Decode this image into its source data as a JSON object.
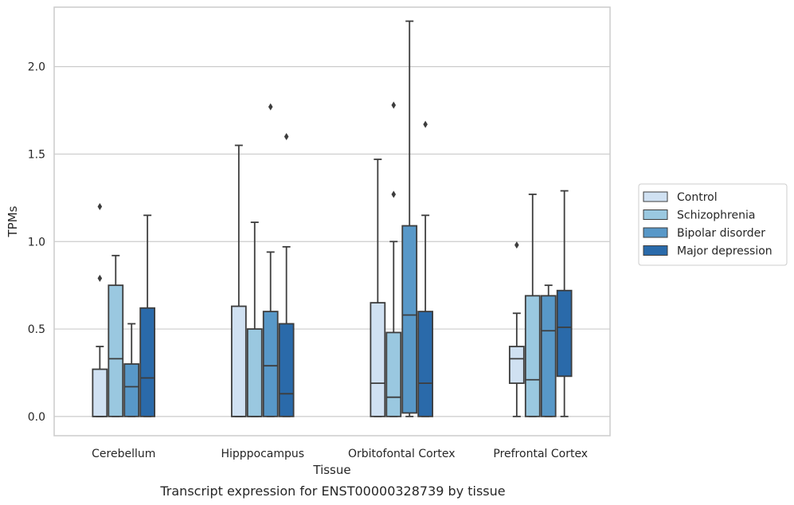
{
  "chart_data": {
    "type": "boxplot",
    "title": "",
    "caption": "Transcript expression for ENST00000328739 by tissue",
    "xlabel": "Tissue",
    "ylabel": "TPMs",
    "ylim": [
      -0.11,
      2.34
    ],
    "yticks": [
      0.0,
      0.5,
      1.0,
      1.5,
      2.0
    ],
    "ytick_labels": [
      "0.0",
      "0.5",
      "1.0",
      "1.5",
      "2.0"
    ],
    "grid": "horizontal",
    "legend_position": "right",
    "categories": [
      "Cerebellum",
      "Hipppocampus",
      "Orbitofontal Cortex",
      "Prefrontal Cortex"
    ],
    "series": [
      {
        "name": "Control",
        "color": "#d0e1f2",
        "boxes": [
          {
            "whislo": 0.0,
            "q1": 0.0,
            "median": 0.0,
            "q3": 0.27,
            "whishi": 0.4,
            "fliers": [
              0.79,
              1.2
            ]
          },
          {
            "whislo": 0.0,
            "q1": 0.0,
            "median": 0.0,
            "q3": 0.63,
            "whishi": 1.55,
            "fliers": []
          },
          {
            "whislo": 0.0,
            "q1": 0.0,
            "median": 0.19,
            "q3": 0.65,
            "whishi": 1.47,
            "fliers": []
          },
          {
            "whislo": 0.0,
            "q1": 0.19,
            "median": 0.33,
            "q3": 0.4,
            "whishi": 0.59,
            "fliers": [
              0.98
            ]
          }
        ]
      },
      {
        "name": "Schizophrenia",
        "color": "#9ac8e0",
        "boxes": [
          {
            "whislo": 0.0,
            "q1": 0.0,
            "median": 0.33,
            "q3": 0.75,
            "whishi": 0.92,
            "fliers": []
          },
          {
            "whislo": 0.0,
            "q1": 0.0,
            "median": 0.0,
            "q3": 0.5,
            "whishi": 1.11,
            "fliers": []
          },
          {
            "whislo": 0.0,
            "q1": 0.0,
            "median": 0.11,
            "q3": 0.48,
            "whishi": 1.0,
            "fliers": [
              1.27,
              1.78
            ]
          },
          {
            "whislo": 0.0,
            "q1": 0.0,
            "median": 0.21,
            "q3": 0.69,
            "whishi": 1.27,
            "fliers": []
          }
        ]
      },
      {
        "name": "Bipolar disorder",
        "color": "#5898c8",
        "boxes": [
          {
            "whislo": 0.0,
            "q1": 0.0,
            "median": 0.17,
            "q3": 0.3,
            "whishi": 0.53,
            "fliers": []
          },
          {
            "whislo": 0.0,
            "q1": 0.0,
            "median": 0.29,
            "q3": 0.6,
            "whishi": 0.94,
            "fliers": [
              1.77
            ]
          },
          {
            "whislo": 0.0,
            "q1": 0.02,
            "median": 0.58,
            "q3": 1.09,
            "whishi": 2.26,
            "fliers": []
          },
          {
            "whislo": 0.0,
            "q1": 0.0,
            "median": 0.49,
            "q3": 0.69,
            "whishi": 0.75,
            "fliers": []
          }
        ]
      },
      {
        "name": "Major depression",
        "color": "#2a6aaa",
        "boxes": [
          {
            "whislo": 0.0,
            "q1": 0.0,
            "median": 0.22,
            "q3": 0.62,
            "whishi": 1.15,
            "fliers": []
          },
          {
            "whislo": 0.0,
            "q1": 0.0,
            "median": 0.13,
            "q3": 0.53,
            "whishi": 0.97,
            "fliers": [
              1.6
            ]
          },
          {
            "whislo": 0.0,
            "q1": 0.0,
            "median": 0.19,
            "q3": 0.6,
            "whishi": 1.15,
            "fliers": [
              1.67
            ]
          },
          {
            "whislo": 0.0,
            "q1": 0.23,
            "median": 0.51,
            "q3": 0.72,
            "whishi": 1.29,
            "fliers": []
          }
        ]
      }
    ]
  }
}
